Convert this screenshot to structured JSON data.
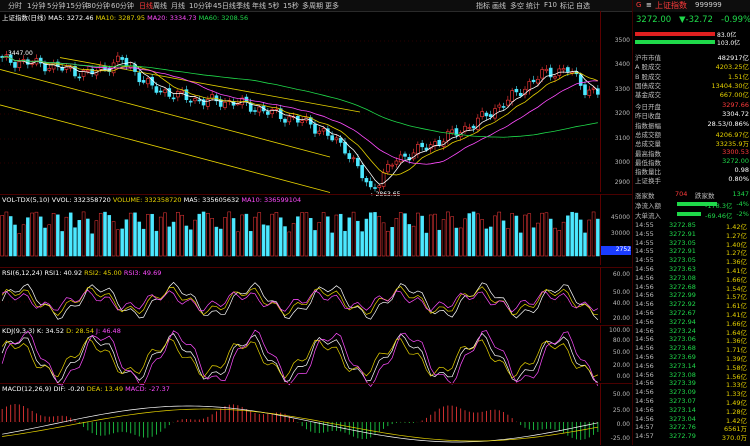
{
  "topbar": {
    "left": [
      "分时",
      "1分钟",
      "5分钟",
      "15分钟",
      "30分钟",
      "60分钟",
      "日线",
      "周线",
      "月线",
      "10分钟",
      "45日线",
      "季线",
      "年线",
      "5秒",
      "15秒",
      "多周期",
      "更多"
    ],
    "active_index": 6,
    "right": [
      "指标",
      "画线",
      "多空",
      "统计",
      "F10",
      "标记",
      "自选"
    ],
    "right_icons": [
      "bars-icon",
      "pencil-icon",
      "scale-icon",
      "stats-icon",
      "f10-icon",
      "flag-icon",
      "star-icon"
    ]
  },
  "main": {
    "legend": {
      "name": "上证指数(日线)",
      "ma5": "MA5: 3272.46",
      "ma10": "MA10: 3287.95",
      "ma20": "MA20: 3334.73",
      "ma60": "MA60: 3208.56"
    },
    "axis": [
      "3500",
      "3400",
      "3300",
      "3200",
      "3100",
      "3000",
      "2900"
    ],
    "high_label": "3447.00",
    "low_label": "2863.65",
    "ma_colors": {
      "ma5": "#ffffff",
      "ma10": "#e6d200",
      "ma20": "#ff4cff",
      "ma60": "#1fd94a"
    }
  },
  "vol": {
    "legend": {
      "name": "VOL-TDX(5,10)",
      "vvol": "VVOL: 332358720",
      "volume": "VOLUME: 332358720",
      "ma5": "MA5: 335605632",
      "ma10": "MA10: 336599104"
    },
    "axis": [
      "45000",
      "30000",
      "15000"
    ],
    "tag": "2752"
  },
  "rsi": {
    "legend": {
      "name": "RSI(6,12,24)",
      "rsi1": "RSI1: 40.92",
      "rsi2": "RSI2: 45.00",
      "rsi3": "RSI3: 49.69"
    },
    "axis": [
      "60.00",
      "50.00",
      "40.00",
      "20.00"
    ]
  },
  "kdj": {
    "legend": {
      "name": "KDJ(9,3,3)",
      "k": "K: 34.52",
      "d": "D: 28.54",
      "j": "J: 46.48"
    },
    "axis": [
      "100.00",
      "80.00",
      "50.00",
      "20.00",
      "0.00"
    ]
  },
  "macd": {
    "legend": {
      "name": "MACD(12,26,9)",
      "dif": "DIF: -0.20",
      "dea": "DEA: 13.49",
      "macd": "MACD: -27.37"
    },
    "axis": [
      "50.00",
      "25.00",
      "0.00",
      "-25.00"
    ]
  },
  "side": {
    "code_prefix": "G",
    "name": "上证指数",
    "code": "999999",
    "price": "3272.00",
    "change": "▼-32.72",
    "pct": "-0.99%",
    "bar1": "83.0亿",
    "bar2": "103.0亿",
    "stats": [
      {
        "l": "沪市市值",
        "r": "482917亿",
        "c": "white"
      },
      {
        "l": "A 股成交",
        "r": "4203.25亿",
        "c": "yellow"
      },
      {
        "l": "B 股成交",
        "r": "1.51亿",
        "c": "yellow"
      },
      {
        "l": "国债成交",
        "r": "13404.30亿",
        "c": "yellow"
      },
      {
        "l": "基金成交",
        "r": "667.00亿",
        "c": "yellow"
      }
    ],
    "stats2": [
      {
        "l": "今日开盘",
        "r": "3297.66",
        "c": "red"
      },
      {
        "l": "昨日收盘",
        "r": "3304.72",
        "c": "white"
      },
      {
        "l": "指数振幅",
        "r": "28.53/0.86%",
        "c": "white"
      },
      {
        "l": "总成交额",
        "r": "4206.97亿",
        "c": "yellow"
      },
      {
        "l": "总成交量",
        "r": "33235.9万",
        "c": "yellow"
      },
      {
        "l": "最高指数",
        "r": "3300.53",
        "c": "red"
      },
      {
        "l": "最低指数",
        "r": "3272.00",
        "c": "green"
      },
      {
        "l": "指数量比",
        "r": "0.98",
        "c": "white"
      },
      {
        "l": "上证换手",
        "r": "0.80%",
        "c": "white"
      }
    ],
    "updown": {
      "l": "涨家数",
      "m": "704",
      "ml": "跌家数",
      "r": "1347"
    },
    "flows": [
      {
        "l": "净流入额",
        "r1": "-178.3亿",
        "r2": "-4%"
      },
      {
        "l": "大单流入",
        "r1": "-69.46亿",
        "r2": "-2%"
      }
    ],
    "ticks": [
      [
        "14:55",
        "3272.85",
        "1.42亿"
      ],
      [
        "14:55",
        "3272.91",
        "1.27亿"
      ],
      [
        "14:55",
        "3273.05",
        "1.40亿"
      ],
      [
        "14:55",
        "3272.91",
        "1.27亿"
      ],
      [
        "14:55",
        "3273.05",
        "1.36亿"
      ],
      [
        "14:56",
        "3273.63",
        "1.41亿"
      ],
      [
        "14:56",
        "3273.08",
        "1.66亿"
      ],
      [
        "14:56",
        "3272.68",
        "1.54亿"
      ],
      [
        "14:56",
        "3272.99",
        "1.57亿"
      ],
      [
        "14:56",
        "3272.92",
        "1.61亿"
      ],
      [
        "14:56",
        "3272.67",
        "1.41亿"
      ],
      [
        "14:56",
        "3272.94",
        "1.66亿"
      ],
      [
        "14:56",
        "3273.24",
        "1.64亿"
      ],
      [
        "14:56",
        "3273.06",
        "1.36亿"
      ],
      [
        "14:56",
        "3273.68",
        "1.71亿"
      ],
      [
        "14:56",
        "3273.69",
        "1.39亿"
      ],
      [
        "14:56",
        "3273.14",
        "1.58亿"
      ],
      [
        "14:56",
        "3273.08",
        "1.56亿"
      ],
      [
        "14:56",
        "3273.39",
        "1.33亿"
      ],
      [
        "14:56",
        "3273.09",
        "1.33亿"
      ],
      [
        "14:56",
        "3273.07",
        "1.49亿"
      ],
      [
        "14:56",
        "3273.14",
        "1.28亿"
      ],
      [
        "14:56",
        "3273.04",
        "1.42亿"
      ],
      [
        "14:57",
        "3272.76",
        "6561万"
      ],
      [
        "14:57",
        "3272.79",
        "370.0万"
      ]
    ]
  }
}
